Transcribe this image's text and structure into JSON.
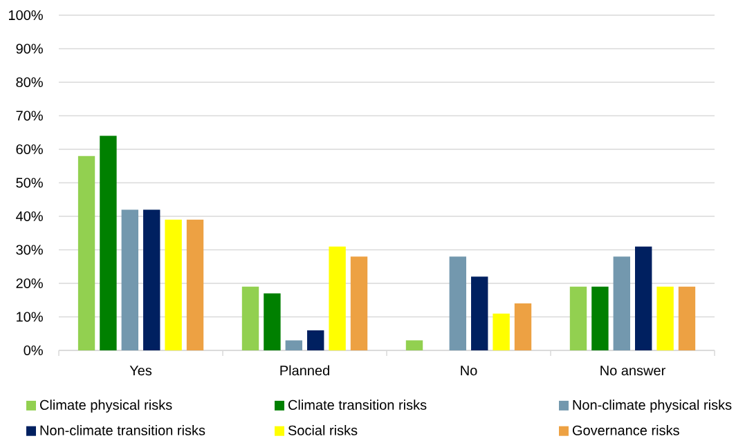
{
  "chart_data": {
    "type": "bar",
    "categories": [
      "Yes",
      "Planned",
      "No",
      "No answer"
    ],
    "series": [
      {
        "name": "Climate physical risks",
        "color": "#92d050",
        "values": [
          58,
          19,
          3,
          19
        ]
      },
      {
        "name": "Climate transition risks",
        "color": "#008000",
        "values": [
          64,
          17,
          0,
          19
        ]
      },
      {
        "name": "Non-climate physical risks",
        "color": "#7398ae",
        "values": [
          42,
          3,
          28,
          28
        ]
      },
      {
        "name": "Non-climate transition risks",
        "color": "#002060",
        "values": [
          42,
          6,
          22,
          31
        ]
      },
      {
        "name": "Social risks",
        "color": "#ffff00",
        "values": [
          39,
          31,
          11,
          19
        ]
      },
      {
        "name": "Governance risks",
        "color": "#eda143",
        "values": [
          39,
          28,
          14,
          19
        ]
      }
    ],
    "ylim": [
      0,
      100
    ],
    "yticks": [
      {
        "value": 0,
        "label": "0%"
      },
      {
        "value": 10,
        "label": "10%"
      },
      {
        "value": 20,
        "label": "20%"
      },
      {
        "value": 30,
        "label": "30%"
      },
      {
        "value": 40,
        "label": "40%"
      },
      {
        "value": 50,
        "label": "50%"
      },
      {
        "value": 60,
        "label": "60%"
      },
      {
        "value": 70,
        "label": "70%"
      },
      {
        "value": 80,
        "label": "80%"
      },
      {
        "value": 90,
        "label": "90%"
      },
      {
        "value": 100,
        "label": "100%"
      }
    ],
    "grid": "y",
    "legend": "bottom"
  }
}
